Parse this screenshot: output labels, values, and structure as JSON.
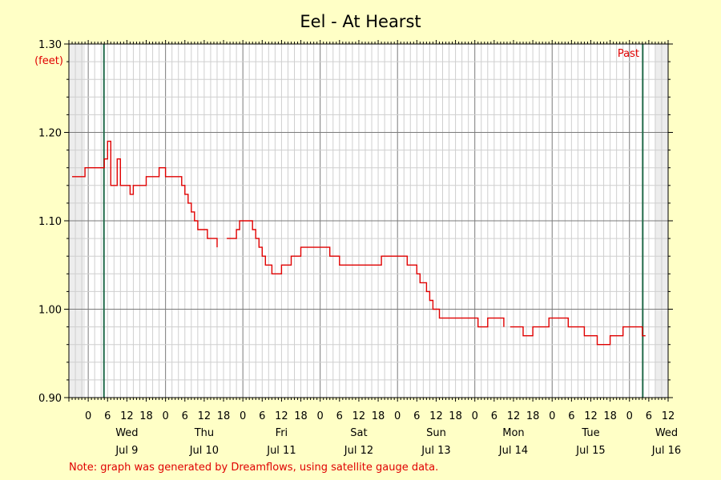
{
  "chart_data": {
    "type": "line",
    "title": "Eel - At Hearst",
    "ylabel": "(feet)",
    "ylim": [
      0.9,
      1.3
    ],
    "y_ticks": [
      "0.90",
      "1.00",
      "1.10",
      "1.20",
      "1.30"
    ],
    "x_hour_ticks": [
      "0",
      "6",
      "12",
      "18",
      "0",
      "6",
      "12",
      "18",
      "0",
      "6",
      "12",
      "18",
      "0",
      "6",
      "12",
      "18",
      "0",
      "6",
      "12",
      "18",
      "0",
      "6",
      "12",
      "18",
      "0",
      "6",
      "12",
      "18",
      "0",
      "6",
      "12"
    ],
    "days": [
      {
        "name": "Wed",
        "date": "Jul 9"
      },
      {
        "name": "Thu",
        "date": "Jul 10"
      },
      {
        "name": "Fri",
        "date": "Jul 11"
      },
      {
        "name": "Sat",
        "date": "Jul 12"
      },
      {
        "name": "Sun",
        "date": "Jul 13"
      },
      {
        "name": "Mon",
        "date": "Jul 14"
      },
      {
        "name": "Tue",
        "date": "Jul 15"
      },
      {
        "name": "Wed",
        "date": "Jul 16"
      }
    ],
    "past_label": "Past",
    "series": [
      {
        "color": "#e00000",
        "points": [
          [
            "Jul 8 19:00",
            1.15
          ],
          [
            "Jul 8 22:00",
            1.15
          ],
          [
            "Jul 8 23:00",
            1.16
          ],
          [
            "Jul 9 04:00",
            1.16
          ],
          [
            "Jul 9 05:00",
            1.17
          ],
          [
            "Jul 9 06:00",
            1.19
          ],
          [
            "Jul 9 07:00",
            1.14
          ],
          [
            "Jul 9 09:00",
            1.17
          ],
          [
            "Jul 9 10:00",
            1.14
          ],
          [
            "Jul 9 13:00",
            1.13
          ],
          [
            "Jul 9 14:00",
            1.14
          ],
          [
            "Jul 9 17:00",
            1.14
          ],
          [
            "Jul 9 18:00",
            1.15
          ],
          [
            "Jul 9 22:00",
            1.16
          ],
          [
            "Jul 10 00:00",
            1.15
          ],
          [
            "Jul 10 04:00",
            1.15
          ],
          [
            "Jul 10 05:00",
            1.14
          ],
          [
            "Jul 10 06:00",
            1.13
          ],
          [
            "Jul 10 07:00",
            1.12
          ],
          [
            "Jul 10 08:00",
            1.11
          ],
          [
            "Jul 10 09:00",
            1.1
          ],
          [
            "Jul 10 10:00",
            1.09
          ],
          [
            "Jul 10 12:00",
            1.09
          ],
          [
            "Jul 10 13:00",
            1.08
          ],
          [
            "Jul 10 15:00",
            1.08
          ],
          [
            "Jul 10 16:00",
            1.07
          ],
          null,
          [
            "Jul 10 19:00",
            1.08
          ],
          [
            "Jul 10 21:00",
            1.08
          ],
          [
            "Jul 10 22:00",
            1.09
          ],
          [
            "Jul 10 23:00",
            1.1
          ],
          [
            "Jul 11 02:00",
            1.1
          ],
          [
            "Jul 11 03:00",
            1.09
          ],
          [
            "Jul 11 04:00",
            1.08
          ],
          [
            "Jul 11 05:00",
            1.07
          ],
          [
            "Jul 11 06:00",
            1.06
          ],
          [
            "Jul 11 07:00",
            1.05
          ],
          [
            "Jul 11 09:00",
            1.04
          ],
          [
            "Jul 11 12:00",
            1.05
          ],
          [
            "Jul 11 15:00",
            1.06
          ],
          [
            "Jul 11 18:00",
            1.07
          ],
          [
            "Jul 12 03:00",
            1.06
          ],
          [
            "Jul 12 06:00",
            1.05
          ],
          [
            "Jul 12 19:00",
            1.06
          ],
          [
            "Jul 13 03:00",
            1.05
          ],
          [
            "Jul 13 06:00",
            1.04
          ],
          [
            "Jul 13 07:00",
            1.03
          ],
          [
            "Jul 13 09:00",
            1.02
          ],
          [
            "Jul 13 10:00",
            1.01
          ],
          [
            "Jul 13 11:00",
            1.0
          ],
          [
            "Jul 13 13:00",
            0.99
          ],
          [
            "Jul 14 00:00",
            0.99
          ],
          [
            "Jul 14 01:00",
            0.98
          ],
          [
            "Jul 14 04:00",
            0.99
          ],
          [
            "Jul 14 09:00",
            0.98
          ],
          null,
          [
            "Jul 14 11:00",
            0.98
          ],
          [
            "Jul 14 14:00",
            0.98
          ],
          [
            "Jul 14 15:00",
            0.97
          ],
          [
            "Jul 14 18:00",
            0.98
          ],
          [
            "Jul 14 23:00",
            0.99
          ],
          [
            "Jul 15 05:00",
            0.98
          ],
          [
            "Jul 15 10:00",
            0.97
          ],
          [
            "Jul 15 14:00",
            0.96
          ],
          [
            "Jul 15 18:00",
            0.97
          ],
          [
            "Jul 15 22:00",
            0.98
          ],
          [
            "Jul 16 04:00",
            0.97
          ],
          [
            "Jul 16 05:00",
            0.97
          ]
        ]
      }
    ]
  },
  "note": "Note: graph was generated by Dreamflows, using satellite gauge data."
}
